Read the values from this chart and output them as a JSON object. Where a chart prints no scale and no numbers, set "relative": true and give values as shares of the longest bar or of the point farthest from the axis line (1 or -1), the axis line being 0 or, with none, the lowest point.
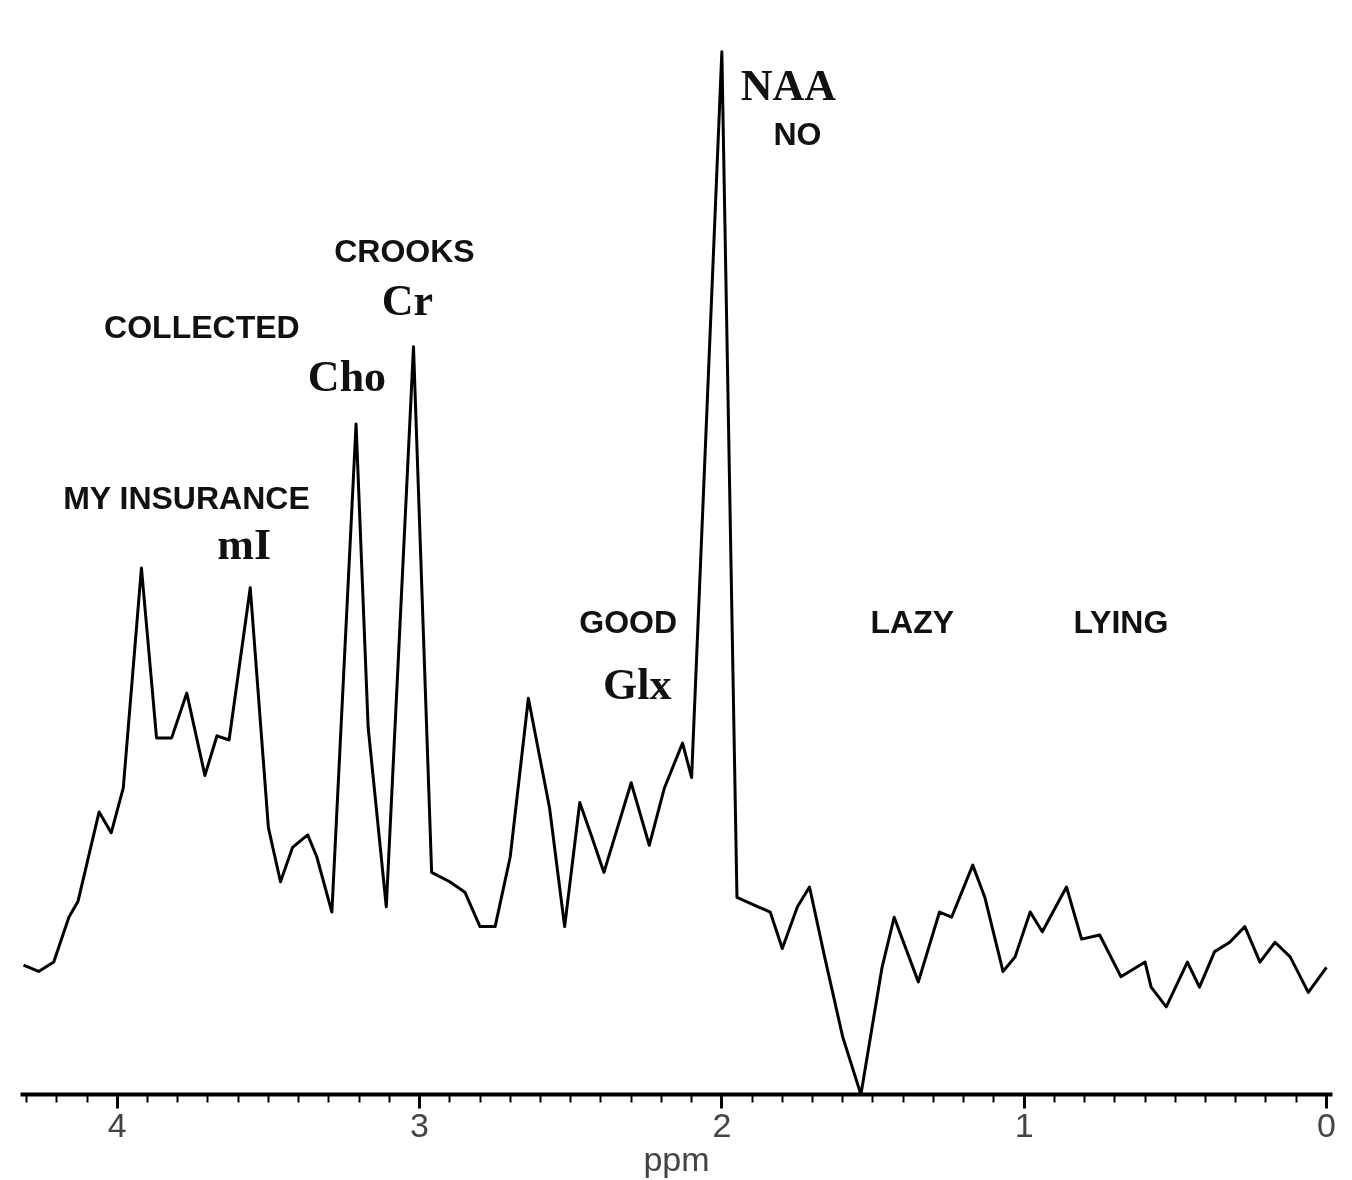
{
  "chart_data": {
    "type": "line",
    "relative": true,
    "xlabel": "ppm",
    "xlim": [
      4.32,
      -0.02
    ],
    "xticks": [
      4,
      3,
      2,
      1,
      0
    ],
    "x": [
      4.31,
      4.26,
      4.21,
      4.16,
      4.13,
      4.06,
      4.02,
      3.98,
      3.92,
      3.87,
      3.82,
      3.77,
      3.71,
      3.67,
      3.63,
      3.56,
      3.5,
      3.46,
      3.42,
      3.37,
      3.34,
      3.29,
      3.21,
      3.17,
      3.11,
      3.02,
      2.96,
      2.9,
      2.85,
      2.8,
      2.75,
      2.7,
      2.64,
      2.57,
      2.52,
      2.47,
      2.43,
      2.39,
      2.3,
      2.24,
      2.19,
      2.13,
      2.1,
      2.0,
      1.95,
      1.88,
      1.84,
      1.8,
      1.75,
      1.71,
      1.66,
      1.6,
      1.54,
      1.47,
      1.43,
      1.35,
      1.28,
      1.24,
      1.17,
      1.13,
      1.07,
      1.03,
      0.98,
      0.94,
      0.86,
      0.81,
      0.75,
      0.68,
      0.6,
      0.58,
      0.53,
      0.46,
      0.42,
      0.37,
      0.32,
      0.27,
      0.22,
      0.17,
      0.12,
      0.06,
      0.0
    ],
    "series": [
      {
        "color": "#000000",
        "values": [
          0.124,
          0.118,
          0.127,
          0.17,
          0.185,
          0.271,
          0.251,
          0.294,
          0.505,
          0.342,
          0.342,
          0.385,
          0.306,
          0.344,
          0.34,
          0.486,
          0.256,
          0.204,
          0.237,
          0.249,
          0.228,
          0.175,
          0.643,
          0.352,
          0.18,
          0.717,
          0.213,
          0.204,
          0.194,
          0.161,
          0.161,
          0.228,
          0.38,
          0.275,
          0.161,
          0.28,
          0.247,
          0.213,
          0.299,
          0.239,
          0.294,
          0.337,
          0.304,
          1.0,
          0.189,
          0.18,
          0.175,
          0.14,
          0.18,
          0.199,
          0.132,
          0.055,
          0.0,
          0.122,
          0.17,
          0.108,
          0.175,
          0.17,
          0.22,
          0.189,
          0.118,
          0.132,
          0.175,
          0.156,
          0.199,
          0.149,
          0.153,
          0.113,
          0.127,
          0.103,
          0.084,
          0.127,
          0.103,
          0.137,
          0.146,
          0.161,
          0.127,
          0.146,
          0.132,
          0.098,
          0.122
        ]
      }
    ],
    "annotations": [
      "NAA",
      "Cr",
      "Cho",
      "mI",
      "Glx",
      "NO",
      "CROOKS",
      "COLLECTED",
      "MY INSURANCE",
      "GOOD",
      "LAZY",
      "LYING"
    ],
    "grid": false,
    "marker": "none",
    "line_style": "solid"
  }
}
